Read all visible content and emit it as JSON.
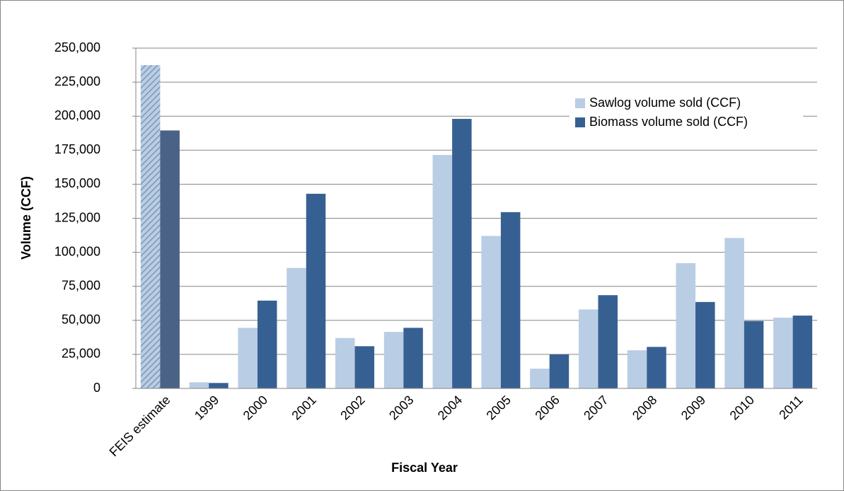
{
  "chart_data": {
    "type": "bar",
    "x_label": "Fiscal Year",
    "y_label": "Volume (CCF)",
    "categories": [
      "FEIS estimate",
      "1999",
      "2000",
      "2001",
      "2002",
      "2003",
      "2004",
      "2005",
      "2006",
      "2007",
      "2008",
      "2009",
      "2010",
      "2011"
    ],
    "series": [
      {
        "name": "Sawlog volume sold (CCF)",
        "color": "#b9cde5",
        "values": [
          237500,
          4500,
          44500,
          88500,
          37000,
          41500,
          171500,
          112000,
          14500,
          58000,
          28000,
          92000,
          110500,
          52000
        ]
      },
      {
        "name": "Biomass volume sold (CCF)",
        "color": "#376092",
        "values": [
          189500,
          4000,
          64500,
          143000,
          31000,
          44500,
          198000,
          129500,
          25000,
          68500,
          30500,
          63500,
          49500,
          53500
        ]
      }
    ],
    "hatched_indices": [
      0
    ],
    "ylim": [
      0,
      250000
    ],
    "yticks": [
      0,
      {
        "value": 25000,
        "label": "25,000"
      },
      {
        "value": 50000,
        "label": "50,000"
      },
      {
        "value": 75000,
        "label": "75,000"
      },
      {
        "value": 100000,
        "label": "100,000"
      },
      {
        "value": 125000,
        "label": "125,000"
      },
      {
        "value": 150000,
        "label": "150,000"
      },
      {
        "value": 175000,
        "label": "175,000"
      },
      {
        "value": 200000,
        "label": "200,000"
      },
      {
        "value": 225000,
        "label": "225,000"
      },
      {
        "value": 250000,
        "label": "250,000"
      }
    ],
    "grid": true,
    "legend": "upper right"
  }
}
